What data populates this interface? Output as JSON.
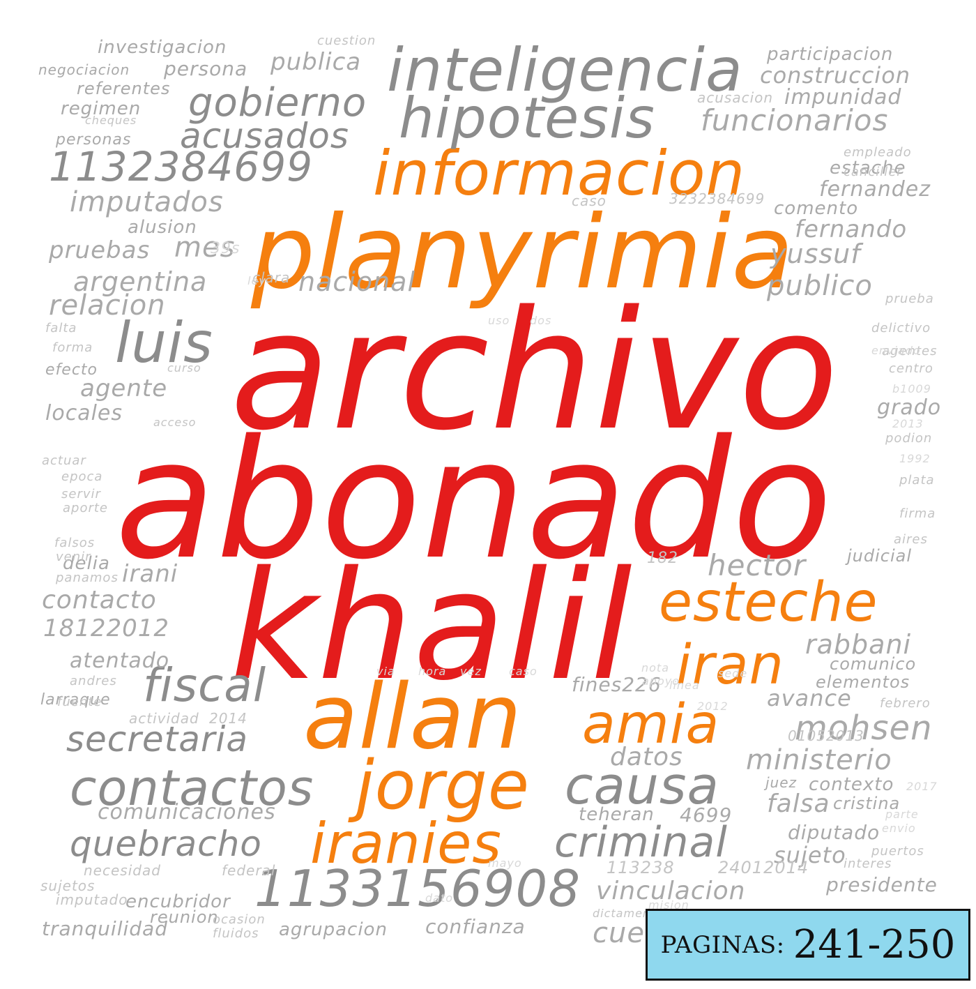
{
  "words": [
    {
      "text": "archivo",
      "tone": "t1"
    },
    {
      "text": "abonado",
      "tone": "t1"
    },
    {
      "text": "khalil",
      "tone": "t1"
    },
    {
      "text": "planyrimia",
      "tone": "t2"
    },
    {
      "text": "informacion",
      "tone": "t2"
    },
    {
      "text": "esteche",
      "tone": "t2"
    },
    {
      "text": "iran",
      "tone": "t2"
    },
    {
      "text": "allan",
      "tone": "t2"
    },
    {
      "text": "amia",
      "tone": "t2"
    },
    {
      "text": "jorge",
      "tone": "t2"
    },
    {
      "text": "iranies",
      "tone": "t2"
    },
    {
      "text": "inteligencia",
      "tone": "t3"
    },
    {
      "text": "hipotesis",
      "tone": "t3"
    },
    {
      "text": "gobierno",
      "tone": "t3"
    },
    {
      "text": "acusados",
      "tone": "t3"
    },
    {
      "text": "1132384699",
      "tone": "t3"
    },
    {
      "text": "luis",
      "tone": "t3"
    },
    {
      "text": "fiscal",
      "tone": "t3"
    },
    {
      "text": "contactos",
      "tone": "t3"
    },
    {
      "text": "causa",
      "tone": "t3"
    },
    {
      "text": "criminal",
      "tone": "t3"
    },
    {
      "text": "1133156908",
      "tone": "t3"
    },
    {
      "text": "quebracho",
      "tone": "t3"
    },
    {
      "text": "secretaria",
      "tone": "t3"
    },
    {
      "text": "imputados",
      "tone": "t4"
    },
    {
      "text": "pruebas",
      "tone": "t4"
    },
    {
      "text": "mes",
      "tone": "t4"
    },
    {
      "text": "argentina",
      "tone": "t4"
    },
    {
      "text": "nacional",
      "tone": "t4"
    },
    {
      "text": "relacion",
      "tone": "t4"
    },
    {
      "text": "agente",
      "tone": "t4"
    },
    {
      "text": "locales",
      "tone": "t4"
    },
    {
      "text": "irani",
      "tone": "t4"
    },
    {
      "text": "contacto",
      "tone": "t4"
    },
    {
      "text": "18122012",
      "tone": "t4"
    },
    {
      "text": "atentado",
      "tone": "t4"
    },
    {
      "text": "comunicaciones",
      "tone": "t4"
    },
    {
      "text": "vinculacion",
      "tone": "t4"
    },
    {
      "text": "hector",
      "tone": "t4"
    },
    {
      "text": "rabbani",
      "tone": "t4"
    },
    {
      "text": "mohsen",
      "tone": "t4"
    },
    {
      "text": "ministerio",
      "tone": "t4"
    },
    {
      "text": "funcionarios",
      "tone": "t4"
    },
    {
      "text": "participacion",
      "tone": "t4"
    },
    {
      "text": "construccion",
      "tone": "t4"
    },
    {
      "text": "impunidad",
      "tone": "t4"
    },
    {
      "text": "fernandez",
      "tone": "t4"
    },
    {
      "text": "fernando",
      "tone": "t4"
    },
    {
      "text": "yussuf",
      "tone": "t4"
    },
    {
      "text": "publico",
      "tone": "t4"
    },
    {
      "text": "investigacion",
      "tone": "t4"
    },
    {
      "text": "negociacion",
      "tone": "t4"
    },
    {
      "text": "persona",
      "tone": "t4"
    },
    {
      "text": "publica",
      "tone": "t4"
    },
    {
      "text": "referentes",
      "tone": "t4"
    },
    {
      "text": "regimen",
      "tone": "t4"
    },
    {
      "text": "personas",
      "tone": "t4"
    },
    {
      "text": "grado",
      "tone": "t4"
    },
    {
      "text": "avance",
      "tone": "t4"
    },
    {
      "text": "falsa",
      "tone": "t4"
    },
    {
      "text": "cristina",
      "tone": "t4"
    },
    {
      "text": "diputado",
      "tone": "t4"
    },
    {
      "text": "sujeto",
      "tone": "t4"
    },
    {
      "text": "presidente",
      "tone": "t4"
    },
    {
      "text": "encubridor",
      "tone": "t4"
    },
    {
      "text": "reunion",
      "tone": "t4"
    },
    {
      "text": "tranquilidad",
      "tone": "t4"
    },
    {
      "text": "agrupacion",
      "tone": "t4"
    },
    {
      "text": "confianza",
      "tone": "t4"
    },
    {
      "text": "datos",
      "tone": "t4"
    },
    {
      "text": "teheran",
      "tone": "t4"
    },
    {
      "text": "4699",
      "tone": "t4"
    },
    {
      "text": "fines226",
      "tone": "t4"
    },
    {
      "text": "larraque",
      "tone": "t4"
    },
    {
      "text": "delia",
      "tone": "t4"
    },
    {
      "text": "judicial",
      "tone": "t4"
    },
    {
      "text": "comunico",
      "tone": "t4"
    },
    {
      "text": "elementos",
      "tone": "t4"
    },
    {
      "text": "contexto",
      "tone": "t4"
    },
    {
      "text": "juez",
      "tone": "t4"
    },
    {
      "text": "estache",
      "tone": "t4"
    },
    {
      "text": "comento",
      "tone": "t4"
    },
    {
      "text": "alusion",
      "tone": "t4"
    },
    {
      "text": "efecto",
      "tone": "t4"
    },
    {
      "text": "acusacion",
      "tone": "t5"
    },
    {
      "text": "empleado",
      "tone": "t5"
    },
    {
      "text": "canciller",
      "tone": "t5"
    },
    {
      "text": "andres",
      "tone": "t5"
    },
    {
      "text": "fuente",
      "tone": "t5"
    },
    {
      "text": "actividad",
      "tone": "t5"
    },
    {
      "text": "2014",
      "tone": "t5"
    },
    {
      "text": "necesidad",
      "tone": "t5"
    },
    {
      "text": "federal",
      "tone": "t5"
    },
    {
      "text": "sujetos",
      "tone": "t5"
    },
    {
      "text": "imputado",
      "tone": "t5"
    },
    {
      "text": "ocasion",
      "tone": "t5"
    },
    {
      "text": "fluidos",
      "tone": "t5"
    },
    {
      "text": "cuestion",
      "tone": "t5"
    },
    {
      "text": "clara",
      "tone": "t5"
    },
    {
      "text": "falta",
      "tone": "t5"
    },
    {
      "text": "forma",
      "tone": "t5"
    },
    {
      "text": "actuar",
      "tone": "t5"
    },
    {
      "text": "epoca",
      "tone": "t5"
    },
    {
      "text": "servir",
      "tone": "t5"
    },
    {
      "text": "aporte",
      "tone": "t5"
    },
    {
      "text": "falsos",
      "tone": "t5"
    },
    {
      "text": "venir",
      "tone": "t5"
    },
    {
      "text": "panamos",
      "tone": "t5"
    },
    {
      "text": "delictivo",
      "tone": "t5"
    },
    {
      "text": "agentes",
      "tone": "t5"
    },
    {
      "text": "centro",
      "tone": "t5"
    },
    {
      "text": "podion",
      "tone": "t5"
    },
    {
      "text": "plata",
      "tone": "t5"
    },
    {
      "text": "firma",
      "tone": "t5"
    },
    {
      "text": "aires",
      "tone": "t5"
    },
    {
      "text": "febrero",
      "tone": "t5"
    },
    {
      "text": "interes",
      "tone": "t5"
    },
    {
      "text": "puertos",
      "tone": "t5"
    },
    {
      "text": "24012014",
      "tone": "t5"
    },
    {
      "text": "113238",
      "tone": "t5"
    },
    {
      "text": "01052013",
      "tone": "t5"
    },
    {
      "text": "3232384699",
      "tone": "t5"
    },
    {
      "text": "caso",
      "tone": "t5"
    },
    {
      "text": "prueba",
      "tone": "t5"
    },
    {
      "text": "acceso",
      "tone": "t5"
    },
    {
      "text": "curso",
      "tone": "t5"
    },
    {
      "text": "cheques",
      "tone": "t5"
    },
    {
      "text": "182",
      "tone": "t5"
    },
    {
      "text": "cue",
      "tone": "t4"
    },
    {
      "text": "dictamen",
      "tone": "t5"
    },
    {
      "text": "b1009",
      "tone": "t6"
    },
    {
      "text": "2013",
      "tone": "t6"
    },
    {
      "text": "39s",
      "tone": "t6"
    },
    {
      "text": "enviado",
      "tone": "t6"
    },
    {
      "text": "1992",
      "tone": "t6"
    },
    {
      "text": "2017",
      "tone": "t6"
    },
    {
      "text": "ley",
      "tone": "t6"
    },
    {
      "text": "uso",
      "tone": "t6"
    },
    {
      "text": "dos",
      "tone": "t6"
    },
    {
      "text": "via",
      "tone": "t6"
    },
    {
      "text": "hora",
      "tone": "t6"
    },
    {
      "text": "vez",
      "tone": "t6"
    },
    {
      "text": "caso",
      "tone": "t6"
    },
    {
      "text": "nota",
      "tone": "t6"
    },
    {
      "text": "sede",
      "tone": "t6"
    },
    {
      "text": "linea",
      "tone": "t6"
    },
    {
      "text": "2012",
      "tone": "t6"
    },
    {
      "text": "mayo",
      "tone": "t6"
    },
    {
      "text": "dato",
      "tone": "t6"
    },
    {
      "text": "mision",
      "tone": "t6"
    },
    {
      "text": "parte",
      "tone": "t6"
    },
    {
      "text": "envio",
      "tone": "t6"
    },
    {
      "text": "marco",
      "tone": "t6"
    },
    {
      "text": "apoyo",
      "tone": "t6"
    }
  ],
  "badge": {
    "label": "PAGINAS:",
    "pages": "241-250"
  }
}
